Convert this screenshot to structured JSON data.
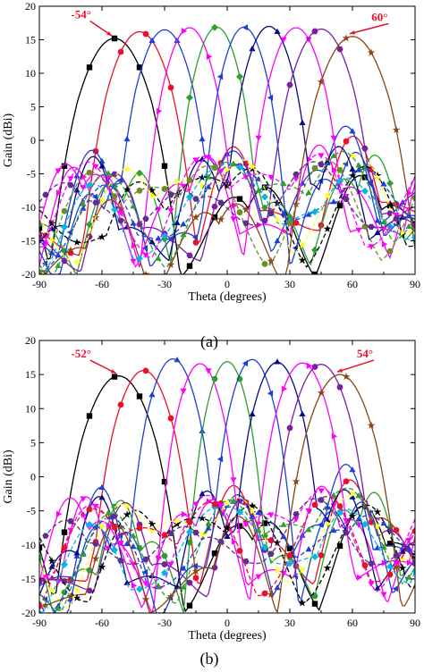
{
  "colors": {
    "axis": "#000000",
    "annotation": "#e8112d",
    "palette": [
      "#000000",
      "#e8112d",
      "#1f3fd6",
      "#ff00ff",
      "#2f9e2f",
      "#7b1fa2",
      "#8b4513",
      "#ffff33",
      "#00b7e8",
      "#5d2e8c",
      "#0a0a80",
      "#6b8e23",
      "#800000",
      "#ff7f00"
    ]
  },
  "chart_data": [
    {
      "panel_label": "(a)",
      "type": "line",
      "xlabel": "Theta (degrees)",
      "ylabel": "Gain (dBi)",
      "xlim": [
        -90,
        90
      ],
      "ylim": [
        -20,
        20
      ],
      "xticks": [
        -90,
        -60,
        -30,
        0,
        30,
        60,
        90
      ],
      "yticks": [
        -20,
        -15,
        -10,
        -5,
        0,
        5,
        10,
        15,
        20
      ],
      "grid": false,
      "annotations": [
        {
          "text": "-54°",
          "x": -54,
          "y": 15.2,
          "label_x": -70,
          "label_y": 18.2
        },
        {
          "text": "60°",
          "x": 60,
          "y": 15.5,
          "label_x": 73,
          "label_y": 17.8
        }
      ],
      "series": [
        {
          "color": "#000000",
          "marker": "square",
          "dashed": false,
          "main_x": -54,
          "peak": 15.2,
          "width": 20,
          "floor": -20,
          "ripple": 1.8,
          "phase": 0.3
        },
        {
          "color": "#e8112d",
          "marker": "circle",
          "dashed": false,
          "main_x": -42,
          "peak": 16.2,
          "width": 18,
          "floor": -18,
          "ripple": 2.0,
          "phase": 1.1
        },
        {
          "color": "#1f3fd6",
          "marker": "triangle",
          "dashed": false,
          "main_x": -30,
          "peak": 16.5,
          "width": 16,
          "floor": -16,
          "ripple": 2.2,
          "phase": 2.0
        },
        {
          "color": "#ff00ff",
          "marker": "triangle-right",
          "dashed": false,
          "main_x": -18,
          "peak": 16.8,
          "width": 15,
          "floor": -17,
          "ripple": 2.0,
          "phase": 2.7
        },
        {
          "color": "#2f9e2f",
          "marker": "diamond",
          "dashed": false,
          "main_x": -5,
          "peak": 16.9,
          "width": 14,
          "floor": -18,
          "ripple": 1.9,
          "phase": 0.6
        },
        {
          "color": "#1f3fd6",
          "marker": "triangle-left",
          "dashed": false,
          "main_x": 8,
          "peak": 16.9,
          "width": 14,
          "floor": -18,
          "ripple": 1.9,
          "phase": 1.6
        },
        {
          "color": "#0a0a80",
          "marker": "triangle",
          "dashed": false,
          "main_x": 20,
          "peak": 17.0,
          "width": 15,
          "floor": -17,
          "ripple": 2.1,
          "phase": 2.4
        },
        {
          "color": "#ff00ff",
          "marker": "triangle-down",
          "dashed": false,
          "main_x": 33,
          "peak": 16.8,
          "width": 16,
          "floor": -17,
          "ripple": 2.0,
          "phase": 3.1
        },
        {
          "color": "#7b1fa2",
          "marker": "hexagon",
          "dashed": false,
          "main_x": 45,
          "peak": 16.6,
          "width": 18,
          "floor": -18,
          "ripple": 1.9,
          "phase": 0.9
        },
        {
          "color": "#8b4513",
          "marker": "star",
          "dashed": false,
          "main_x": 60,
          "peak": 15.5,
          "width": 20,
          "floor": -20,
          "ripple": 1.8,
          "phase": 1.9
        },
        {
          "color": "#000000",
          "marker": "star",
          "dashed": true,
          "main_x": -10,
          "peak": -5.5,
          "width": 30,
          "floor": -19,
          "ripple": 1.5,
          "phase": 0.4
        },
        {
          "color": "#1f3fd6",
          "marker": "triangle",
          "dashed": true,
          "main_x": 5,
          "peak": -4.5,
          "width": 30,
          "floor": -18,
          "ripple": 1.5,
          "phase": 1.3
        },
        {
          "color": "#00b7e8",
          "marker": "diamond",
          "dashed": true,
          "main_x": 0,
          "peak": -3.5,
          "width": 28,
          "floor": -19,
          "ripple": 1.4,
          "phase": 2.2
        },
        {
          "color": "#ff00ff",
          "marker": "triangle-down",
          "dashed": true,
          "main_x": 15,
          "peak": -5.0,
          "width": 32,
          "floor": -17,
          "ripple": 1.6,
          "phase": 2.9
        },
        {
          "color": "#ffff33",
          "marker": "triangle-right",
          "dashed": true,
          "main_x": -20,
          "peak": -6.0,
          "width": 32,
          "floor": -18,
          "ripple": 1.5,
          "phase": 0.8
        },
        {
          "color": "#2f9e2f",
          "marker": "triangle",
          "dashed": true,
          "main_x": 25,
          "peak": -6.5,
          "width": 34,
          "floor": -17,
          "ripple": 1.5,
          "phase": 1.7
        },
        {
          "color": "#6b8e23",
          "marker": "circle",
          "dashed": true,
          "main_x": -35,
          "peak": -7.0,
          "width": 34,
          "floor": -19,
          "ripple": 1.6,
          "phase": 2.6
        },
        {
          "color": "#5d2e8c",
          "marker": "hexagon",
          "dashed": true,
          "main_x": 40,
          "peak": -7.5,
          "width": 34,
          "floor": -18,
          "ripple": 1.6,
          "phase": 3.3
        }
      ]
    },
    {
      "panel_label": "(b)",
      "type": "line",
      "xlabel": "Theta (degrees)",
      "ylabel": "Gain (dBi)",
      "xlim": [
        -90,
        90
      ],
      "ylim": [
        -20,
        20
      ],
      "xticks": [
        -90,
        -60,
        -30,
        0,
        30,
        60,
        90
      ],
      "yticks": [
        -20,
        -15,
        -10,
        -5,
        0,
        5,
        10,
        15,
        20
      ],
      "grid": false,
      "annotations": [
        {
          "text": "-52°",
          "x": -52,
          "y": 14.8,
          "label_x": -70,
          "label_y": 17.5
        },
        {
          "text": "54°",
          "x": 54,
          "y": 15.0,
          "label_x": 66,
          "label_y": 17.5
        }
      ],
      "series": [
        {
          "color": "#000000",
          "marker": "square",
          "dashed": false,
          "main_x": -52,
          "peak": 14.8,
          "width": 20,
          "floor": -19,
          "ripple": 1.8,
          "phase": 0.2
        },
        {
          "color": "#e8112d",
          "marker": "circle",
          "dashed": false,
          "main_x": -40,
          "peak": 15.6,
          "width": 17,
          "floor": -18,
          "ripple": 2.0,
          "phase": 1.0
        },
        {
          "color": "#1f3fd6",
          "marker": "triangle",
          "dashed": false,
          "main_x": -26,
          "peak": 17.3,
          "width": 15,
          "floor": -17,
          "ripple": 2.2,
          "phase": 1.8
        },
        {
          "color": "#ff00ff",
          "marker": "triangle-down",
          "dashed": false,
          "main_x": -13,
          "peak": 16.6,
          "width": 14,
          "floor": -18,
          "ripple": 2.1,
          "phase": 2.5
        },
        {
          "color": "#2f9e2f",
          "marker": "hexagon",
          "dashed": false,
          "main_x": 0,
          "peak": 16.9,
          "width": 13,
          "floor": -18,
          "ripple": 1.9,
          "phase": 0.7
        },
        {
          "color": "#1f3fd6",
          "marker": "triangle-left",
          "dashed": false,
          "main_x": 12,
          "peak": 17.2,
          "width": 14,
          "floor": -19,
          "ripple": 2.0,
          "phase": 1.5
        },
        {
          "color": "#0a0a80",
          "marker": "triangle",
          "dashed": false,
          "main_x": 24,
          "peak": 16.8,
          "width": 15,
          "floor": -17,
          "ripple": 2.1,
          "phase": 2.3
        },
        {
          "color": "#ff00ff",
          "marker": "triangle-right",
          "dashed": false,
          "main_x": 36,
          "peak": 16.7,
          "width": 16,
          "floor": -17,
          "ripple": 2.0,
          "phase": 3.0
        },
        {
          "color": "#7b1fa2",
          "marker": "circle",
          "dashed": false,
          "main_x": 45,
          "peak": 16.5,
          "width": 17,
          "floor": -18,
          "ripple": 1.9,
          "phase": 0.5
        },
        {
          "color": "#8b4513",
          "marker": "star",
          "dashed": false,
          "main_x": 54,
          "peak": 15.0,
          "width": 19,
          "floor": -19,
          "ripple": 1.8,
          "phase": 1.4
        },
        {
          "color": "#000000",
          "marker": "star",
          "dashed": true,
          "main_x": -15,
          "peak": -6.0,
          "width": 32,
          "floor": -19,
          "ripple": 1.5,
          "phase": 0.3
        },
        {
          "color": "#1f3fd6",
          "marker": "triangle",
          "dashed": true,
          "main_x": 10,
          "peak": -5.0,
          "width": 30,
          "floor": -18,
          "ripple": 1.5,
          "phase": 1.2
        },
        {
          "color": "#00b7e8",
          "marker": "diamond",
          "dashed": true,
          "main_x": -2,
          "peak": -4.2,
          "width": 28,
          "floor": -19,
          "ripple": 1.4,
          "phase": 2.1
        },
        {
          "color": "#ff00ff",
          "marker": "triangle-down",
          "dashed": true,
          "main_x": 20,
          "peak": -5.5,
          "width": 32,
          "floor": -17,
          "ripple": 1.6,
          "phase": 2.8
        },
        {
          "color": "#ffff33",
          "marker": "triangle-right",
          "dashed": true,
          "main_x": -25,
          "peak": -6.5,
          "width": 32,
          "floor": -18,
          "ripple": 1.5,
          "phase": 0.9
        },
        {
          "color": "#2f9e2f",
          "marker": "triangle",
          "dashed": true,
          "main_x": 30,
          "peak": -7.0,
          "width": 34,
          "floor": -17,
          "ripple": 1.5,
          "phase": 1.6
        },
        {
          "color": "#e8112d",
          "marker": "circle",
          "dashed": true,
          "main_x": -40,
          "peak": -7.5,
          "width": 34,
          "floor": -19,
          "ripple": 1.6,
          "phase": 2.4
        },
        {
          "color": "#5d2e8c",
          "marker": "hexagon",
          "dashed": true,
          "main_x": 42,
          "peak": -7.5,
          "width": 34,
          "floor": -18,
          "ripple": 1.6,
          "phase": 3.2
        }
      ]
    }
  ]
}
